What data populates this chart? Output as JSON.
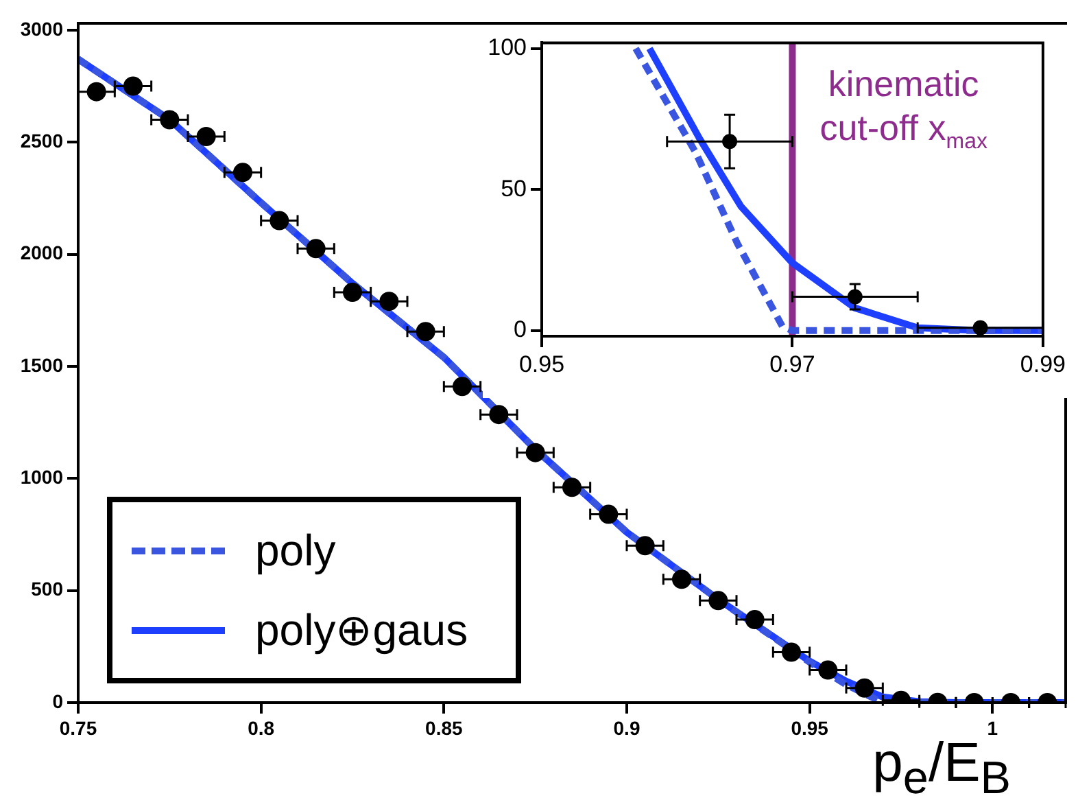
{
  "chart_data": [
    {
      "type": "scatter",
      "xlabel": "p$_{e}$/E$_{B}$",
      "xlim": [
        0.75,
        1.02
      ],
      "ylim": [
        0,
        3030
      ],
      "xticks": [
        0.75,
        0.8,
        0.85,
        0.9,
        0.95,
        1
      ],
      "yticks": [
        0,
        500,
        1000,
        1500,
        2000,
        2500,
        3000
      ],
      "legend": "bottom left",
      "grid": false,
      "series": [
        {
          "type": "scatter",
          "marker": "circle",
          "color": "#000000",
          "x": [
            0.755,
            0.765,
            0.775,
            0.785,
            0.795,
            0.805,
            0.815,
            0.825,
            0.835,
            0.845,
            0.855,
            0.865,
            0.875,
            0.885,
            0.895,
            0.905,
            0.915,
            0.925,
            0.935,
            0.945,
            0.955,
            0.965,
            0.975,
            0.985,
            0.995,
            1.005,
            1.015
          ],
          "values": [
            2725,
            2750,
            2600,
            2525,
            2365,
            2150,
            2025,
            1830,
            1790,
            1655,
            1410,
            1285,
            1115,
            960,
            840,
            700,
            550,
            455,
            370,
            225,
            145,
            65,
            10,
            1,
            0,
            0,
            0
          ],
          "xerrors": [
            0.005,
            0.005,
            0.005,
            0.005,
            0.005,
            0.005,
            0.005,
            0.005,
            0.005,
            0.005,
            0.005,
            0.005,
            0.005,
            0.005,
            0.005,
            0.005,
            0.005,
            0.005,
            0.005,
            0.005,
            0.005,
            0.005,
            0.005,
            0.005,
            0.005,
            0.005,
            0.005
          ]
        },
        {
          "name": "poly",
          "type": "line",
          "marker": "none",
          "line_style": "dashed",
          "color": "#3a55e0",
          "x": [
            0.75,
            0.775,
            0.8,
            0.825,
            0.85,
            0.875,
            0.9,
            0.925,
            0.95,
            0.96,
            0.97,
            0.98,
            0.99,
            1.02
          ],
          "values": [
            2870,
            2600,
            2230,
            1870,
            1540,
            1130,
            760,
            460,
            180,
            80,
            0,
            0,
            0,
            0
          ]
        },
        {
          "name": "poly⊕gaus",
          "type": "line",
          "marker": "none",
          "line_style": "solid",
          "color": "#1f3fff",
          "x": [
            0.75,
            0.775,
            0.8,
            0.825,
            0.85,
            0.875,
            0.9,
            0.925,
            0.95,
            0.96,
            0.97,
            0.98,
            0.99,
            1.02
          ],
          "values": [
            2870,
            2600,
            2230,
            1870,
            1540,
            1130,
            760,
            460,
            185,
            95,
            25,
            4,
            0,
            0
          ]
        }
      ]
    },
    {
      "type": "scatter",
      "xlim": [
        0.95,
        0.99
      ],
      "ylim": [
        -2,
        102
      ],
      "xticks": [
        0.95,
        0.97,
        0.99
      ],
      "yticks": [
        0,
        50,
        100
      ],
      "legend": false,
      "grid": false,
      "ref_lines": [
        {
          "axis": "x",
          "value": 0.97,
          "color": "#8e2c8e",
          "label": "kinematic cut-off x$_{max}$"
        }
      ],
      "series": [
        {
          "type": "scatter",
          "marker": "circle",
          "color": "#000000",
          "x": [
            0.965,
            0.975,
            0.985
          ],
          "values": [
            67,
            12,
            1
          ],
          "errors": [
            9.5,
            4.5,
            1.5
          ],
          "xerrors": [
            0.005,
            0.005,
            0.005
          ]
        },
        {
          "type": "line",
          "marker": "none",
          "line_style": "dashed",
          "color": "#3a55e0",
          "x": [
            0.9575,
            0.9623,
            0.9656,
            0.9692,
            0.97,
            0.98,
            0.99
          ],
          "values": [
            100,
            63,
            31,
            1.5,
            0,
            0,
            0
          ]
        },
        {
          "type": "line",
          "marker": "none",
          "line_style": "solid",
          "color": "#1f3fff",
          "x": [
            0.9586,
            0.9626,
            0.9659,
            0.97,
            0.975,
            0.98,
            0.985,
            0.99
          ],
          "values": [
            100,
            68,
            44,
            24,
            8,
            1,
            0,
            0
          ]
        }
      ]
    }
  ]
}
